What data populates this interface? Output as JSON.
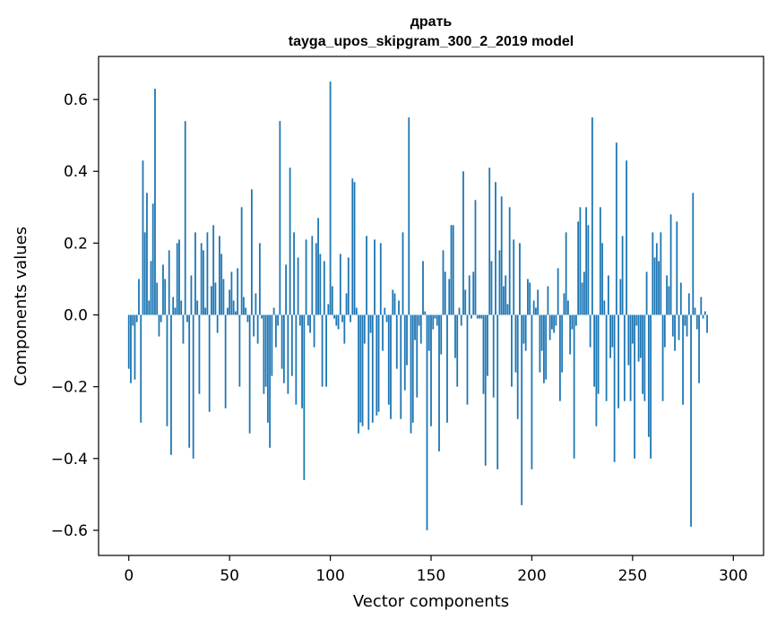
{
  "chart_data": {
    "type": "bar",
    "title": "драть",
    "subtitle": "tayga_upos_skipgram_300_2_2019 model",
    "xlabel": "Vector components",
    "ylabel": "Components values",
    "xlim": [
      -15,
      315
    ],
    "ylim": [
      -0.67,
      0.72
    ],
    "xticks": [
      0,
      50,
      100,
      150,
      200,
      250,
      300
    ],
    "yticks": [
      -0.6,
      -0.4,
      -0.2,
      0.0,
      0.2,
      0.4,
      0.6
    ],
    "xtick_labels": [
      "0",
      "50",
      "100",
      "150",
      "200",
      "250",
      "300"
    ],
    "ytick_labels": [
      "−0.6",
      "−0.4",
      "−0.2",
      "0.0",
      "0.2",
      "0.4",
      "0.6"
    ],
    "bar_color": "#1f77b4",
    "grid": false,
    "values": [
      -0.15,
      -0.19,
      -0.03,
      -0.18,
      -0.02,
      0.1,
      -0.3,
      0.43,
      0.23,
      0.34,
      0.04,
      0.15,
      0.31,
      0.63,
      0.09,
      -0.06,
      -0.02,
      0.14,
      0.1,
      -0.31,
      0.18,
      -0.39,
      0.05,
      0.02,
      0.2,
      0.21,
      0.04,
      -0.08,
      0.54,
      -0.02,
      -0.37,
      0.11,
      -0.4,
      0.23,
      0.04,
      -0.22,
      0.2,
      0.18,
      0.02,
      0.23,
      -0.27,
      0.08,
      0.25,
      0.09,
      -0.05,
      0.22,
      0.17,
      0.1,
      -0.26,
      0.02,
      0.07,
      0.12,
      0.04,
      0.01,
      0.13,
      -0.2,
      0.3,
      0.05,
      0.02,
      -0.02,
      -0.33,
      0.35,
      -0.06,
      0.06,
      -0.08,
      0.2,
      -0.01,
      -0.22,
      -0.2,
      -0.3,
      -0.37,
      -0.17,
      0.02,
      -0.09,
      -0.03,
      0.54,
      -0.15,
      -0.19,
      0.14,
      -0.22,
      0.41,
      -0.17,
      0.23,
      -0.25,
      0.16,
      -0.03,
      -0.26,
      -0.46,
      0.21,
      -0.03,
      -0.05,
      0.22,
      -0.09,
      0.2,
      0.27,
      0.17,
      -0.2,
      0.15,
      -0.2,
      0.03,
      0.65,
      0.08,
      -0.01,
      -0.03,
      -0.04,
      0.17,
      -0.02,
      -0.08,
      0.06,
      0.16,
      -0.02,
      0.38,
      0.37,
      0.02,
      -0.33,
      -0.3,
      -0.31,
      -0.08,
      0.22,
      -0.32,
      -0.05,
      -0.3,
      0.21,
      -0.28,
      -0.27,
      0.2,
      -0.1,
      0.02,
      -0.02,
      -0.25,
      -0.29,
      0.07,
      0.06,
      -0.15,
      0.04,
      -0.29,
      0.23,
      -0.21,
      -0.14,
      0.55,
      -0.33,
      -0.3,
      -0.07,
      -0.23,
      -0.03,
      -0.08,
      0.15,
      0.01,
      -0.6,
      -0.1,
      -0.31,
      -0.04,
      -0.01,
      -0.03,
      -0.38,
      -0.11,
      0.18,
      0.12,
      -0.3,
      0.1,
      0.25,
      0.25,
      -0.12,
      -0.2,
      0.02,
      -0.03,
      0.4,
      0.07,
      -0.25,
      0.11,
      -0.01,
      0.12,
      0.32,
      -0.01,
      -0.01,
      -0.01,
      -0.22,
      -0.42,
      -0.17,
      0.41,
      0.15,
      -0.23,
      0.37,
      -0.43,
      0.18,
      0.33,
      0.08,
      0.11,
      0.03,
      0.3,
      -0.2,
      0.21,
      -0.16,
      -0.29,
      0.2,
      -0.53,
      -0.08,
      -0.1,
      0.1,
      0.09,
      -0.43,
      0.04,
      0.02,
      0.07,
      -0.16,
      -0.1,
      -0.19,
      -0.18,
      0.08,
      -0.07,
      -0.04,
      -0.05,
      -0.03,
      0.13,
      -0.24,
      -0.16,
      0.06,
      0.23,
      0.04,
      -0.11,
      -0.04,
      -0.4,
      -0.03,
      0.26,
      0.3,
      0.09,
      0.12,
      0.3,
      0.25,
      -0.09,
      0.55,
      -0.2,
      -0.31,
      -0.22,
      0.3,
      0.2,
      0.04,
      -0.24,
      0.11,
      -0.12,
      -0.09,
      -0.41,
      0.48,
      -0.26,
      0.1,
      0.22,
      -0.24,
      0.43,
      -0.14,
      -0.24,
      -0.08,
      -0.4,
      -0.03,
      -0.13,
      -0.12,
      -0.22,
      -0.24,
      0.12,
      -0.34,
      -0.4,
      0.23,
      0.16,
      0.2,
      0.15,
      0.23,
      -0.24,
      -0.09,
      0.11,
      0.08,
      0.28,
      -0.06,
      -0.1,
      0.26,
      -0.07,
      0.09,
      -0.25,
      -0.03,
      -0.06,
      0.06,
      -0.59,
      0.34,
      0.02,
      -0.04,
      -0.19,
      0.05,
      -0.01,
      0.01,
      -0.05
    ]
  }
}
